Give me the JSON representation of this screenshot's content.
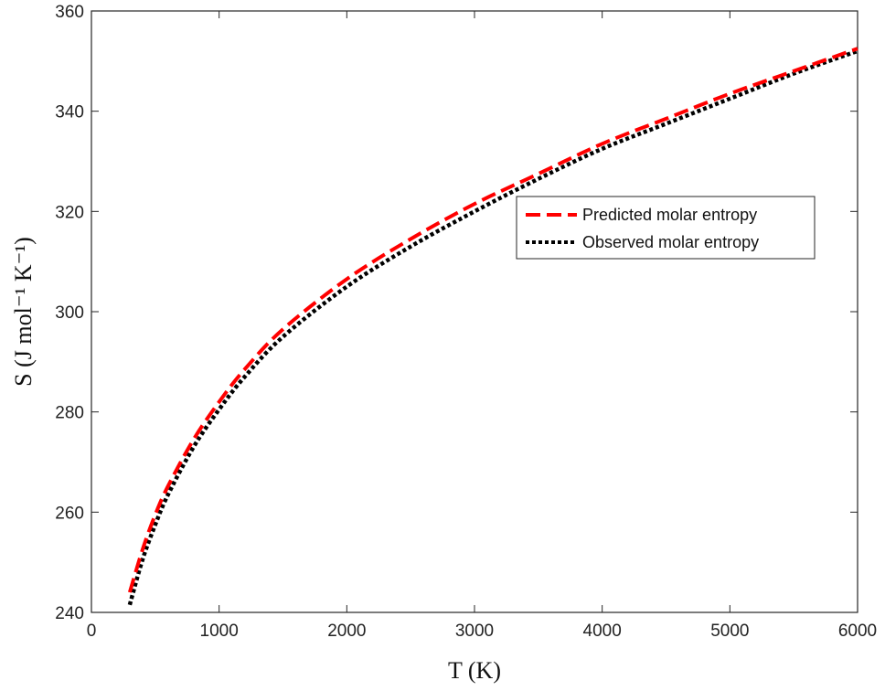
{
  "chart_data": {
    "type": "line",
    "xlabel": "T (K)",
    "ylabel": "S (J mol⁻¹ K⁻¹)",
    "xlim": [
      0,
      6000
    ],
    "ylim": [
      240,
      360
    ],
    "xticks": [
      "0",
      "1000",
      "2000",
      "3000",
      "4000",
      "5000",
      "6000"
    ],
    "yticks": [
      "240",
      "260",
      "280",
      "300",
      "320",
      "340",
      "360"
    ],
    "grid": false,
    "legend_position": "right, upper-middle",
    "series": [
      {
        "name": "Predicted molar entropy",
        "color": "#ff0000",
        "style": "dashed",
        "x": [
          300,
          400,
          500,
          600,
          800,
          1000,
          1200,
          1500,
          2000,
          2500,
          3000,
          3500,
          4000,
          4500,
          5000,
          5500,
          6000
        ],
        "y": [
          244.0,
          252.5,
          259.5,
          265.2,
          274.5,
          282.0,
          288.5,
          296.5,
          306.5,
          314.5,
          321.5,
          327.5,
          333.5,
          338.5,
          343.5,
          348.0,
          352.5
        ]
      },
      {
        "name": "Observed molar entropy",
        "color": "#000000",
        "style": "dotted",
        "x": [
          300,
          400,
          500,
          600,
          800,
          1000,
          1200,
          1500,
          2000,
          2500,
          3000,
          3500,
          4000,
          4500,
          5000,
          5500,
          6000
        ],
        "y": [
          241.5,
          250.5,
          257.5,
          263.5,
          273.0,
          280.5,
          287.0,
          295.0,
          305.0,
          313.0,
          320.0,
          326.5,
          332.5,
          337.5,
          342.5,
          347.5,
          352.0
        ]
      }
    ]
  }
}
